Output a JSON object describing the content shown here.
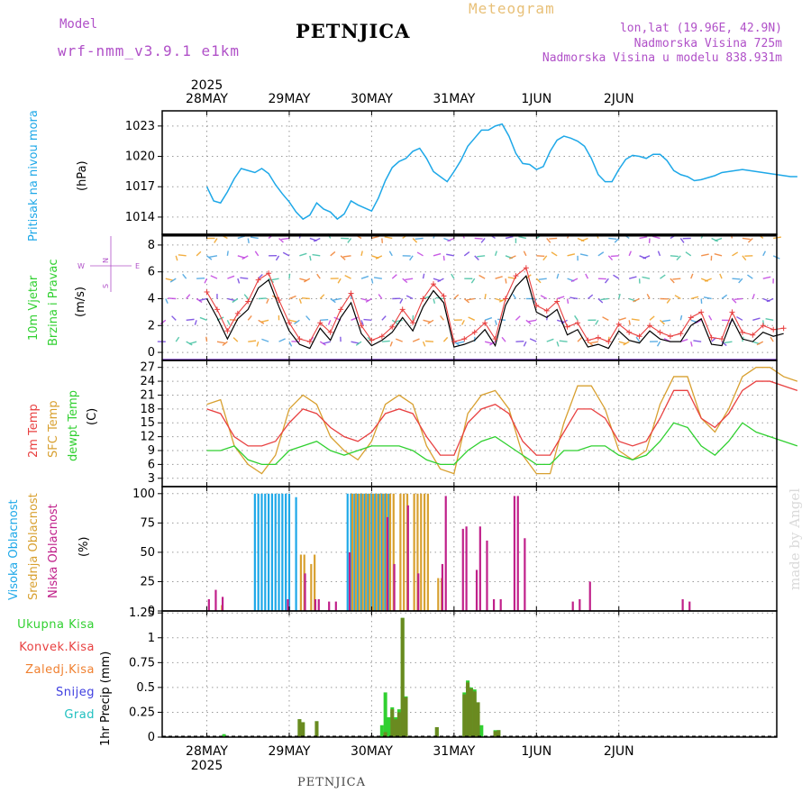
{
  "header": {
    "model_label": "Model",
    "model_name": "wrf-nmm_v3.9.1 e1km",
    "station": "PETNJICA",
    "product": "Meteogram",
    "lonlat": "lon,lat (19.96E, 42.9N)",
    "elevation": "Nadmorska Visina 725m",
    "model_elevation": "Nadmorska Visina u modelu 838.931m",
    "credit": "made by Angel",
    "footer_station": "PETNJICA",
    "year": "2025"
  },
  "colors": {
    "pressure": "#1ea8e8",
    "temp2m": "#e84040",
    "sfc": "#d8a030",
    "dewpt": "#30d030",
    "high_cloud": "#1ea8e8",
    "mid_cloud": "#d8a030",
    "low_cloud": "#c0208a",
    "total_rain": "#30d030",
    "conv_rain": "#e84040",
    "freez_rain": "#f08030",
    "snow": "#4040e0",
    "hail": "#20c0c0",
    "overlap_rain": "#6a8a20"
  },
  "chart_data": [
    {
      "id": "pressure",
      "type": "line",
      "ylabel_title": "Pritisak na nivou mora",
      "unit": "(hPa)",
      "x_days": [
        "28MAY",
        "29MAY",
        "30MAY",
        "31MAY",
        "1JUN",
        "2JUN"
      ],
      "ylim": [
        1012.3,
        1024.5
      ],
      "yticks": [
        1014,
        1017,
        1020,
        1023
      ],
      "series": [
        {
          "hours": [
            0,
            2,
            4,
            6,
            8,
            10,
            12,
            14,
            16,
            18,
            20,
            22,
            24,
            26,
            28,
            30,
            32,
            34,
            36,
            38,
            40,
            42,
            44,
            46,
            48,
            50,
            52,
            54,
            56,
            58,
            60,
            62,
            64,
            66,
            68,
            70,
            72,
            74,
            76,
            78,
            80,
            82,
            84,
            86,
            88,
            90,
            92,
            94,
            96,
            98,
            100,
            102,
            104,
            106,
            108,
            110,
            112,
            114,
            116,
            118,
            120,
            122,
            124,
            126,
            128,
            130,
            132,
            134,
            136,
            138,
            140,
            142,
            144,
            146,
            148,
            150,
            152,
            154,
            156,
            158,
            160,
            162,
            164,
            166,
            168,
            170,
            172
          ],
          "values": [
            1017.0,
            1015.6,
            1015.4,
            1016.5,
            1017.8,
            1018.8,
            1018.6,
            1018.4,
            1018.8,
            1018.3,
            1017.2,
            1016.3,
            1015.5,
            1014.5,
            1013.8,
            1014.2,
            1015.4,
            1014.8,
            1014.5,
            1013.8,
            1014.3,
            1015.6,
            1015.2,
            1014.9,
            1014.6,
            1015.9,
            1017.6,
            1018.9,
            1019.5,
            1019.8,
            1020.5,
            1020.8,
            1019.8,
            1018.5,
            1018.0,
            1017.5,
            1018.5,
            1019.6,
            1021.0,
            1021.8,
            1022.6,
            1022.6,
            1023.0,
            1023.2,
            1022.0,
            1020.3,
            1019.3,
            1019.2,
            1018.7,
            1019.0,
            1020.5,
            1021.6,
            1022.0,
            1021.8,
            1021.5,
            1021.0,
            1019.8,
            1018.2,
            1017.5,
            1017.5,
            1018.7,
            1019.7,
            1020.1,
            1020.0,
            1019.8,
            1020.2,
            1020.2,
            1019.6,
            1018.6,
            1018.2,
            1018.0,
            1017.6,
            1017.7,
            1017.9,
            1018.1,
            1018.4,
            1018.5,
            1018.6,
            1018.7,
            1018.6,
            1018.5,
            1018.4,
            1018.3,
            1018.2,
            1018.1,
            1018.0,
            1018.0
          ]
        }
      ]
    },
    {
      "id": "wind",
      "type": "line",
      "ylabel_title1": "10m Vjetar",
      "ylabel_title2": "Brzina i Pravac",
      "unit": "(m/s)",
      "compass": {
        "n": "N",
        "s": "S",
        "e": "E",
        "w": "W"
      },
      "ylim": [
        -0.6,
        8.8
      ],
      "yticks": [
        0,
        2,
        4,
        6,
        8
      ],
      "series": [
        {
          "name": "wind",
          "hours": [
            0,
            3,
            6,
            9,
            12,
            15,
            18,
            21,
            24,
            27,
            30,
            33,
            36,
            39,
            42,
            45,
            48,
            51,
            54,
            57,
            60,
            63,
            66,
            69,
            72,
            75,
            78,
            81,
            84,
            87,
            90,
            93,
            96,
            99,
            102,
            105,
            108,
            111,
            114,
            117,
            120,
            123,
            126,
            129,
            132,
            135,
            138,
            141,
            144,
            147,
            150,
            153,
            156,
            159,
            162,
            165,
            168
          ],
          "values": [
            4.0,
            2.6,
            1.0,
            2.5,
            3.2,
            4.8,
            5.4,
            3.4,
            1.6,
            0.6,
            0.3,
            1.8,
            0.9,
            2.6,
            3.7,
            1.4,
            0.5,
            0.9,
            1.5,
            2.6,
            1.6,
            3.4,
            4.6,
            3.7,
            0.4,
            0.6,
            0.9,
            1.7,
            0.5,
            3.5,
            4.9,
            5.7,
            3.0,
            2.6,
            3.2,
            1.3,
            1.7,
            0.4,
            0.6,
            0.3,
            1.6,
            0.9,
            0.7,
            1.6,
            1.0,
            0.8,
            0.8,
            2.0,
            2.5,
            0.6,
            0.5,
            2.5,
            1.0,
            0.8,
            1.5,
            1.2,
            1.4
          ]
        },
        {
          "name": "gust",
          "hours": [
            0,
            3,
            6,
            9,
            12,
            15,
            18,
            21,
            24,
            27,
            30,
            33,
            36,
            39,
            42,
            45,
            48,
            51,
            54,
            57,
            60,
            63,
            66,
            69,
            72,
            75,
            78,
            81,
            84,
            87,
            90,
            93,
            96,
            99,
            102,
            105,
            108,
            111,
            114,
            117,
            120,
            123,
            126,
            129,
            132,
            135,
            138,
            141,
            144,
            147,
            150,
            153,
            156,
            159,
            162,
            165,
            168
          ],
          "values": [
            4.5,
            3.2,
            1.6,
            2.9,
            3.8,
            5.4,
            5.9,
            3.9,
            2.2,
            1.0,
            0.8,
            2.2,
            1.5,
            3.2,
            4.4,
            2.0,
            0.9,
            1.2,
            1.9,
            3.2,
            2.2,
            4.0,
            5.1,
            4.2,
            0.8,
            1.0,
            1.5,
            2.2,
            1.0,
            4.0,
            5.7,
            6.3,
            3.5,
            3.1,
            3.8,
            1.9,
            2.2,
            0.9,
            1.1,
            0.8,
            2.1,
            1.5,
            1.2,
            2.0,
            1.5,
            1.2,
            1.4,
            2.6,
            3.0,
            1.1,
            1.0,
            3.0,
            1.5,
            1.3,
            2.0,
            1.7,
            1.8
          ]
        }
      ]
    },
    {
      "id": "temperature",
      "type": "line",
      "ylabel_title1": "2m Temp",
      "ylabel_title2": "SFC Temp",
      "ylabel_title3": "dewpt Temp",
      "unit": "(C)",
      "ylim": [
        1.2,
        28.5
      ],
      "yticks": [
        3,
        6,
        9,
        12,
        15,
        18,
        21,
        24,
        27
      ],
      "series": [
        {
          "name": "2m",
          "hours": [
            0,
            4,
            8,
            12,
            16,
            20,
            24,
            28,
            32,
            36,
            40,
            44,
            48,
            52,
            56,
            60,
            64,
            68,
            72,
            76,
            80,
            84,
            88,
            92,
            96,
            100,
            104,
            108,
            112,
            116,
            120,
            124,
            128,
            132,
            136,
            140,
            144,
            148,
            152,
            156,
            160,
            164,
            168,
            172
          ],
          "values": [
            18,
            17,
            12,
            10,
            10,
            11,
            15,
            18,
            17,
            14,
            12,
            11,
            13,
            17,
            18,
            17,
            12,
            8,
            8,
            15,
            18,
            19,
            17,
            11,
            8,
            8,
            13,
            18,
            18,
            16,
            11,
            10,
            11,
            16,
            22,
            22,
            16,
            14,
            17,
            22,
            24,
            24,
            23,
            22
          ]
        },
        {
          "name": "sfc",
          "hours": [
            0,
            4,
            8,
            12,
            16,
            20,
            24,
            28,
            32,
            36,
            40,
            44,
            48,
            52,
            56,
            60,
            64,
            68,
            72,
            76,
            80,
            84,
            88,
            92,
            96,
            100,
            104,
            108,
            112,
            116,
            120,
            124,
            128,
            132,
            136,
            140,
            144,
            148,
            152,
            156,
            160,
            164,
            168,
            172
          ],
          "values": [
            19,
            20,
            10,
            6,
            4,
            8,
            18,
            21,
            19,
            12,
            9,
            7,
            11,
            19,
            21,
            19,
            10,
            5,
            4,
            17,
            21,
            22,
            18,
            8,
            4,
            4,
            15,
            23,
            23,
            18,
            9,
            7,
            9,
            19,
            25,
            25,
            16,
            13,
            18,
            25,
            27,
            27,
            25,
            24
          ]
        },
        {
          "name": "dewpt",
          "hours": [
            0,
            4,
            8,
            12,
            16,
            20,
            24,
            28,
            32,
            36,
            40,
            44,
            48,
            52,
            56,
            60,
            64,
            68,
            72,
            76,
            80,
            84,
            88,
            92,
            96,
            100,
            104,
            108,
            112,
            116,
            120,
            124,
            128,
            132,
            136,
            140,
            144,
            148,
            152,
            156,
            160,
            164,
            168,
            172
          ],
          "values": [
            9,
            9,
            10,
            7,
            6,
            6,
            9,
            10,
            11,
            9,
            8,
            9,
            10,
            10,
            10,
            9,
            7,
            6,
            6,
            9,
            11,
            12,
            10,
            8,
            6,
            6,
            9,
            9,
            10,
            10,
            8,
            7,
            8,
            11,
            15,
            14,
            10,
            8,
            11,
            15,
            13,
            12,
            11,
            10
          ]
        }
      ]
    },
    {
      "id": "cloud",
      "type": "bar",
      "ylabel_title1": "Visoka Oblacnost",
      "ylabel_title2": "Srednja Oblacnost",
      "ylabel_title3": "Niska Oblacnost",
      "unit": "(%)",
      "ylim": [
        0,
        106
      ],
      "yticks": [
        0,
        25,
        50,
        75,
        100
      ],
      "series": [
        {
          "name": "high",
          "hours": [
            14,
            15,
            16,
            17,
            18,
            19,
            20,
            21,
            22,
            23,
            24,
            26,
            41,
            42,
            43,
            44,
            45,
            46,
            47,
            48,
            49,
            50,
            51,
            52,
            53
          ],
          "values": [
            100,
            100,
            100,
            100,
            100,
            100,
            100,
            100,
            100,
            100,
            100,
            97,
            100,
            100,
            100,
            100,
            100,
            100,
            100,
            100,
            100,
            100,
            100,
            100,
            100
          ]
        },
        {
          "name": "mid",
          "hours": [
            4,
            27,
            28,
            30,
            31,
            42,
            43,
            44,
            45,
            46,
            47,
            48,
            49,
            50,
            51,
            52,
            53,
            54,
            56,
            57,
            58,
            60,
            61,
            62,
            63,
            64,
            67,
            68
          ],
          "values": [
            5,
            48,
            48,
            40,
            48,
            100,
            100,
            100,
            100,
            100,
            100,
            100,
            100,
            100,
            100,
            100,
            100,
            100,
            100,
            100,
            100,
            100,
            100,
            100,
            100,
            100,
            28,
            28
          ]
        },
        {
          "name": "low",
          "hours": [
            1,
            3,
            5,
            24,
            29,
            32,
            33,
            36,
            38,
            42,
            53,
            55,
            59,
            62,
            69,
            70,
            75,
            76,
            79,
            80,
            82,
            84,
            86,
            90,
            91,
            93,
            107,
            109,
            112,
            139,
            141
          ],
          "values": [
            10,
            18,
            12,
            10,
            32,
            10,
            10,
            8,
            8,
            50,
            80,
            40,
            90,
            32,
            40,
            98,
            70,
            72,
            35,
            72,
            60,
            10,
            10,
            98,
            98,
            62,
            8,
            10,
            25,
            10,
            8
          ]
        }
      ]
    },
    {
      "id": "precip",
      "type": "bar",
      "ylabel_title": "1hr Precip (mm)",
      "legend": [
        "Ukupna Kisa",
        "Konvek.Kisa",
        "Zaledj.Kisa",
        "Snijeg",
        "Grad"
      ],
      "ylim": [
        0,
        1.27
      ],
      "yticks": [
        0,
        0.25,
        0.5,
        0.75,
        1,
        1.25
      ],
      "series": [
        {
          "name": "total",
          "hours": [
            5,
            27,
            28,
            32,
            51,
            52,
            53,
            54,
            55,
            56,
            57,
            58,
            67,
            75,
            76,
            77,
            78,
            79,
            80,
            84,
            85
          ],
          "values": [
            0.03,
            0.18,
            0.15,
            0.16,
            0.12,
            0.45,
            0.2,
            0.3,
            0.2,
            0.28,
            1.2,
            0.41,
            0.1,
            0.45,
            0.57,
            0.5,
            0.48,
            0.35,
            0.12,
            0.07,
            0.07
          ]
        },
        {
          "name": "convective",
          "hours": [
            27,
            28,
            32,
            52,
            54,
            55,
            56,
            57,
            58,
            67,
            75,
            76,
            77,
            78,
            79,
            84,
            85
          ],
          "values": [
            0.18,
            0.15,
            0.16,
            0.05,
            0.28,
            0.18,
            0.25,
            1.2,
            0.4,
            0.1,
            0.43,
            0.55,
            0.49,
            0.46,
            0.35,
            0.06,
            0.07
          ]
        }
      ]
    }
  ]
}
